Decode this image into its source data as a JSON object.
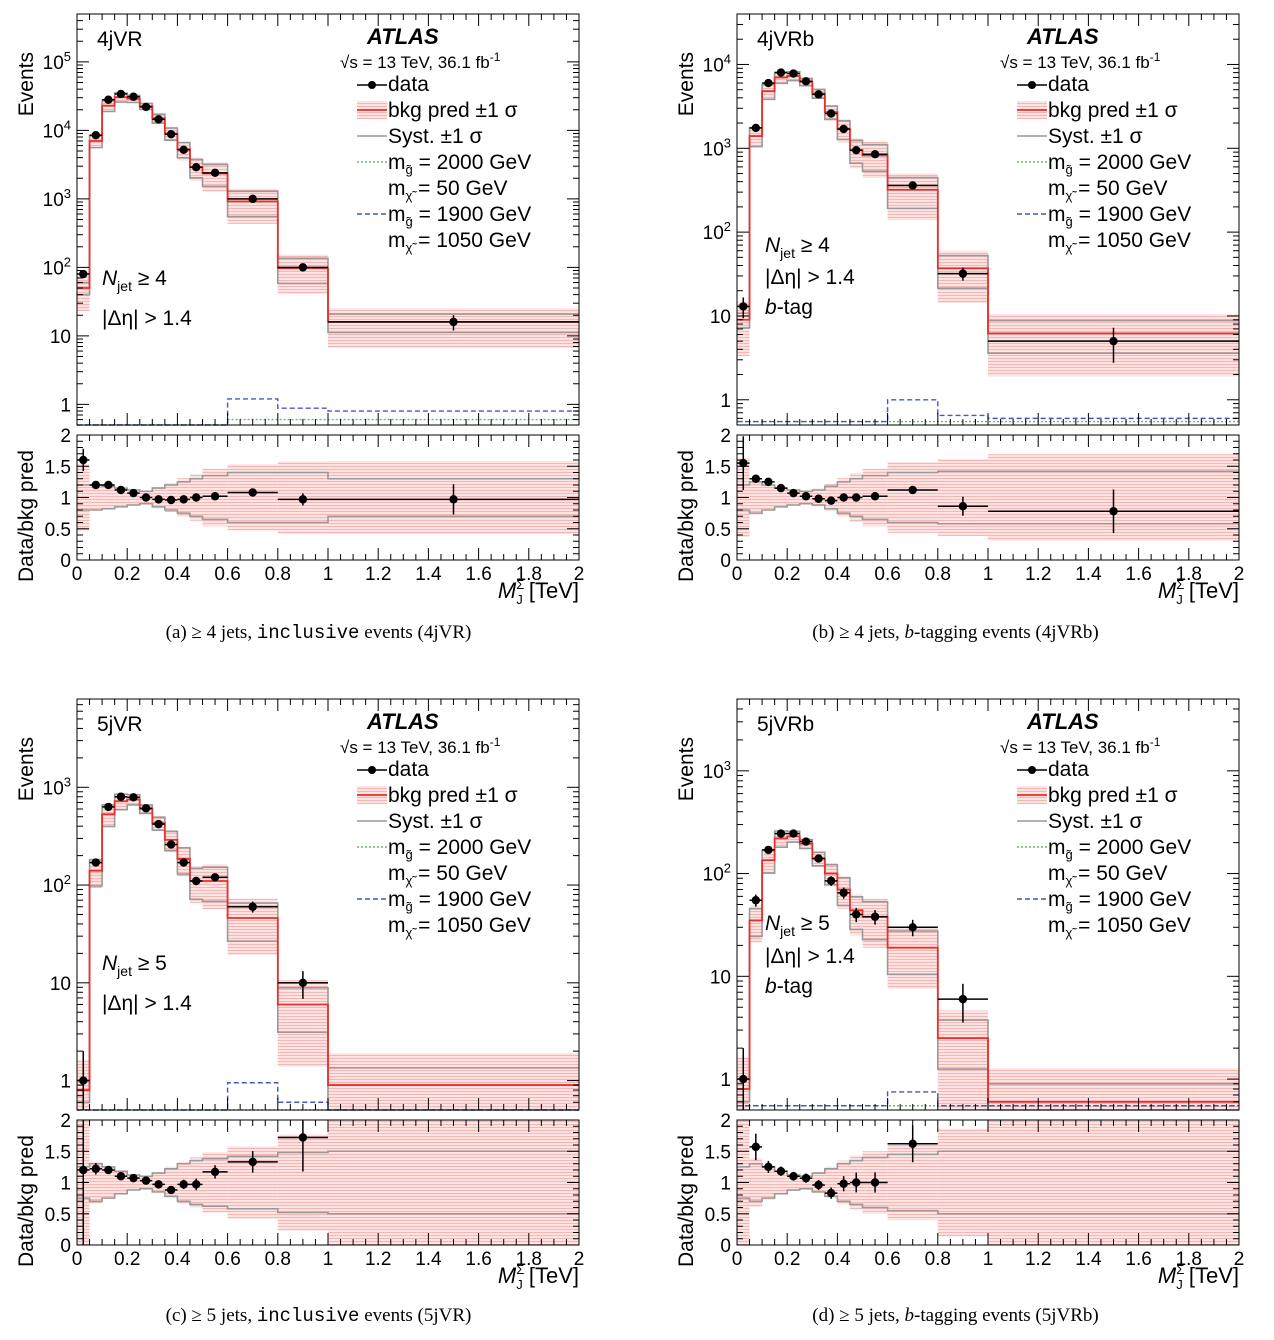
{
  "figure": {
    "panels": [
      {
        "id": "a",
        "region": "4jVR",
        "caption_prefix": "(a)  ≥ 4 jets, ",
        "caption_mono": "inclusive",
        "caption_suffix": " events (4jVR)",
        "selection": [
          {
            "main": "N",
            "sub": "jet",
            "rest": " ≥ 4"
          },
          {
            "main": "|Δη| > 1.4",
            "sub": "",
            "rest": ""
          }
        ]
      },
      {
        "id": "b",
        "region": "4jVRb",
        "caption_prefix": "(b)  ≥ 4 jets, ",
        "caption_ital": "b",
        "caption_suffix": "-tagging events (4jVRb)",
        "selection": [
          {
            "main": "N",
            "sub": "jet",
            "rest": " ≥ 4"
          },
          {
            "main": "|Δη| > 1.4",
            "sub": "",
            "rest": ""
          },
          {
            "main": "b",
            "sub": "",
            "rest": "-tag"
          }
        ]
      },
      {
        "id": "c",
        "region": "5jVR",
        "caption_prefix": "(c)  ≥ 5 jets, ",
        "caption_mono": "inclusive",
        "caption_suffix": " events (5jVR)",
        "selection": [
          {
            "main": "N",
            "sub": "jet",
            "rest": " ≥ 5"
          },
          {
            "main": "|Δη| > 1.4",
            "sub": "",
            "rest": ""
          }
        ]
      },
      {
        "id": "d",
        "region": "5jVRb",
        "caption_prefix": "(d)  ≥ 5 jets, ",
        "caption_ital": "b",
        "caption_suffix": "-tagging events (5jVRb)",
        "selection": [
          {
            "main": "N",
            "sub": "jet",
            "rest": " ≥ 5"
          },
          {
            "main": "|Δη| > 1.4",
            "sub": "",
            "rest": ""
          },
          {
            "main": "b",
            "sub": "",
            "rest": "-tag"
          }
        ]
      }
    ],
    "atlas_label": "ATLAS",
    "energy_label": "√s = 13 TeV, 36.1 fb",
    "energy_sup": "-1",
    "legend": {
      "data": "data",
      "bkg": "bkg pred ±1 σ",
      "syst": "Syst. ±1 σ",
      "sig1_line1": "= 2000 GeV",
      "sig1_line2": "= 50 GeV",
      "sig2_line1": "= 1900 GeV",
      "sig2_line2": "= 1050 GeV"
    },
    "colors": {
      "bkg": "#e8302c",
      "band": "#f7b6b4",
      "syst": "#999999",
      "sig1": "#66bb66",
      "sig2": "#4455cc",
      "data": "#000000"
    }
  },
  "chart_data": [
    {
      "type": "histogram",
      "region": "4jVR",
      "ylabel": "Events",
      "ratio_ylabel": "Data/bkg pred",
      "xlabel": "M_J^Σ [TeV]",
      "xlim": [
        0,
        2
      ],
      "ylim": [
        0.5,
        500000
      ],
      "ylog": true,
      "ratio_ylim": [
        0,
        2
      ],
      "bin_edges": [
        0,
        0.05,
        0.1,
        0.15,
        0.2,
        0.25,
        0.3,
        0.35,
        0.4,
        0.45,
        0.5,
        0.6,
        0.8,
        1.0,
        2.0
      ],
      "data": [
        80,
        8500,
        28000,
        34000,
        31000,
        22000,
        14500,
        8800,
        5200,
        2900,
        2400,
        1000,
        100,
        16
      ],
      "bkg": [
        50,
        7000,
        23000,
        30500,
        29000,
        22500,
        15000,
        9000,
        5300,
        2900,
        2350,
        920,
        97,
        16
      ],
      "syst_rel": [
        0.2,
        0.2,
        0.18,
        0.15,
        0.12,
        0.1,
        0.15,
        0.2,
        0.25,
        0.3,
        0.35,
        0.4,
        0.4,
        0.3
      ],
      "stat_rel": [
        0.5,
        0.05,
        0.05,
        0.05,
        0.05,
        0.05,
        0.08,
        0.12,
        0.18,
        0.22,
        0.3,
        0.35,
        0.42,
        0.5
      ],
      "sig1": [
        0.5,
        0.5,
        0.5,
        0.5,
        0.5,
        0.5,
        0.5,
        0.5,
        0.5,
        0.5,
        0.5,
        0.6,
        0.6,
        0.6
      ],
      "sig2": [
        0.5,
        0.5,
        0.5,
        0.5,
        0.5,
        0.5,
        0.5,
        0.5,
        0.5,
        0.5,
        0.5,
        1.2,
        0.88,
        0.8
      ],
      "ratio": [
        1.6,
        1.2,
        1.2,
        1.12,
        1.07,
        1.0,
        0.97,
        0.96,
        0.97,
        1.0,
        1.02,
        1.08,
        0.97,
        0.97
      ]
    },
    {
      "type": "histogram",
      "region": "4jVRb",
      "ylabel": "Events",
      "ratio_ylabel": "Data/bkg pred",
      "xlabel": "M_J^Σ [TeV]",
      "xlim": [
        0,
        2
      ],
      "ylim": [
        0.5,
        40000
      ],
      "ylog": true,
      "ratio_ylim": [
        0,
        2
      ],
      "bin_edges": [
        0,
        0.05,
        0.1,
        0.15,
        0.2,
        0.25,
        0.3,
        0.35,
        0.4,
        0.45,
        0.5,
        0.6,
        0.8,
        1.0,
        2.0
      ],
      "data": [
        13,
        1750,
        6000,
        8000,
        7800,
        6300,
        4400,
        2600,
        1700,
        950,
        850,
        360,
        32,
        5
      ],
      "bkg": [
        9,
        1400,
        4800,
        7000,
        7300,
        6200,
        4500,
        2700,
        1700,
        950,
        820,
        320,
        37,
        6.2
      ],
      "syst_rel": [
        0.2,
        0.25,
        0.2,
        0.15,
        0.12,
        0.1,
        0.12,
        0.18,
        0.25,
        0.3,
        0.35,
        0.4,
        0.42,
        0.42
      ],
      "stat_rel": [
        0.6,
        0.1,
        0.05,
        0.05,
        0.05,
        0.05,
        0.08,
        0.12,
        0.18,
        0.25,
        0.3,
        0.4,
        0.45,
        0.55
      ],
      "sig1": [
        0.55,
        0.55,
        0.55,
        0.55,
        0.55,
        0.55,
        0.55,
        0.55,
        0.55,
        0.55,
        0.55,
        0.55,
        0.55,
        0.55
      ],
      "sig2": [
        0.55,
        0.55,
        0.55,
        0.55,
        0.55,
        0.55,
        0.55,
        0.55,
        0.55,
        0.55,
        0.55,
        1.0,
        0.65,
        0.6
      ],
      "ratio": [
        1.55,
        1.3,
        1.25,
        1.15,
        1.07,
        1.02,
        0.98,
        0.95,
        1.0,
        1.0,
        1.02,
        1.12,
        0.86,
        0.78
      ]
    },
    {
      "type": "histogram",
      "region": "5jVR",
      "ylabel": "Events",
      "ratio_ylabel": "Data/bkg pred",
      "xlabel": "M_J^Σ [TeV]",
      "xlim": [
        0,
        2
      ],
      "ylim": [
        0.5,
        8000
      ],
      "ylog": true,
      "ratio_ylim": [
        0,
        2
      ],
      "bin_edges": [
        0,
        0.05,
        0.1,
        0.15,
        0.2,
        0.25,
        0.3,
        0.35,
        0.4,
        0.45,
        0.5,
        0.6,
        0.8,
        1.0,
        2.0
      ],
      "data": [
        1,
        170,
        630,
        800,
        790,
        610,
        420,
        260,
        170,
        110,
        120,
        60,
        10,
        0
      ],
      "bkg": [
        0.8,
        140,
        530,
        720,
        750,
        600,
        430,
        290,
        185,
        110,
        110,
        46,
        6,
        0.9
      ],
      "syst_rel": [
        0.25,
        0.3,
        0.25,
        0.18,
        0.12,
        0.1,
        0.15,
        0.22,
        0.3,
        0.35,
        0.38,
        0.42,
        0.48,
        0.5
      ],
      "stat_rel": [
        1.0,
        0.15,
        0.08,
        0.05,
        0.05,
        0.05,
        0.08,
        0.12,
        0.15,
        0.2,
        0.3,
        0.4,
        0.6,
        1.0
      ],
      "sig1": [
        0.5,
        0.5,
        0.5,
        0.5,
        0.5,
        0.5,
        0.5,
        0.5,
        0.5,
        0.5,
        0.5,
        0.5,
        0.5,
        0.5
      ],
      "sig2": [
        0.5,
        0.5,
        0.5,
        0.5,
        0.5,
        0.5,
        0.5,
        0.5,
        0.5,
        0.5,
        0.5,
        0.95,
        0.6,
        0.5
      ],
      "ratio": [
        1.2,
        1.22,
        1.2,
        1.1,
        1.07,
        1.03,
        0.97,
        0.88,
        0.97,
        0.97,
        1.17,
        1.33,
        1.72,
        null
      ]
    },
    {
      "type": "histogram",
      "region": "5jVRb",
      "ylabel": "Events",
      "ratio_ylabel": "Data/bkg pred",
      "xlabel": "M_J^Σ [TeV]",
      "xlim": [
        0,
        2
      ],
      "ylim": [
        0.5,
        5000
      ],
      "ylog": true,
      "ratio_ylim": [
        0,
        2
      ],
      "bin_edges": [
        0,
        0.05,
        0.1,
        0.15,
        0.2,
        0.25,
        0.3,
        0.35,
        0.4,
        0.45,
        0.5,
        0.6,
        0.8,
        1.0,
        2.0
      ],
      "data": [
        1,
        55,
        170,
        245,
        245,
        205,
        140,
        85,
        65,
        40,
        38,
        30,
        6,
        0
      ],
      "bkg": [
        0.8,
        35,
        135,
        220,
        230,
        195,
        140,
        100,
        70,
        44,
        38,
        19,
        2.5,
        0.6
      ],
      "syst_rel": [
        0.25,
        0.3,
        0.25,
        0.18,
        0.12,
        0.1,
        0.15,
        0.22,
        0.3,
        0.35,
        0.4,
        0.45,
        0.5,
        0.5
      ],
      "stat_rel": [
        1.0,
        0.25,
        0.1,
        0.06,
        0.06,
        0.06,
        0.08,
        0.12,
        0.18,
        0.25,
        0.3,
        0.4,
        0.7,
        1.0
      ],
      "sig1": [
        0.55,
        0.55,
        0.55,
        0.55,
        0.55,
        0.55,
        0.55,
        0.55,
        0.55,
        0.55,
        0.55,
        0.55,
        0.55,
        0.55
      ],
      "sig2": [
        0.55,
        0.55,
        0.55,
        0.55,
        0.55,
        0.55,
        0.55,
        0.55,
        0.55,
        0.55,
        0.55,
        0.75,
        0.55,
        0.55
      ],
      "ratio": [
        null,
        1.57,
        1.25,
        1.18,
        1.1,
        1.07,
        0.96,
        0.83,
        0.98,
        1.0,
        1.0,
        1.62,
        null,
        null
      ]
    }
  ]
}
